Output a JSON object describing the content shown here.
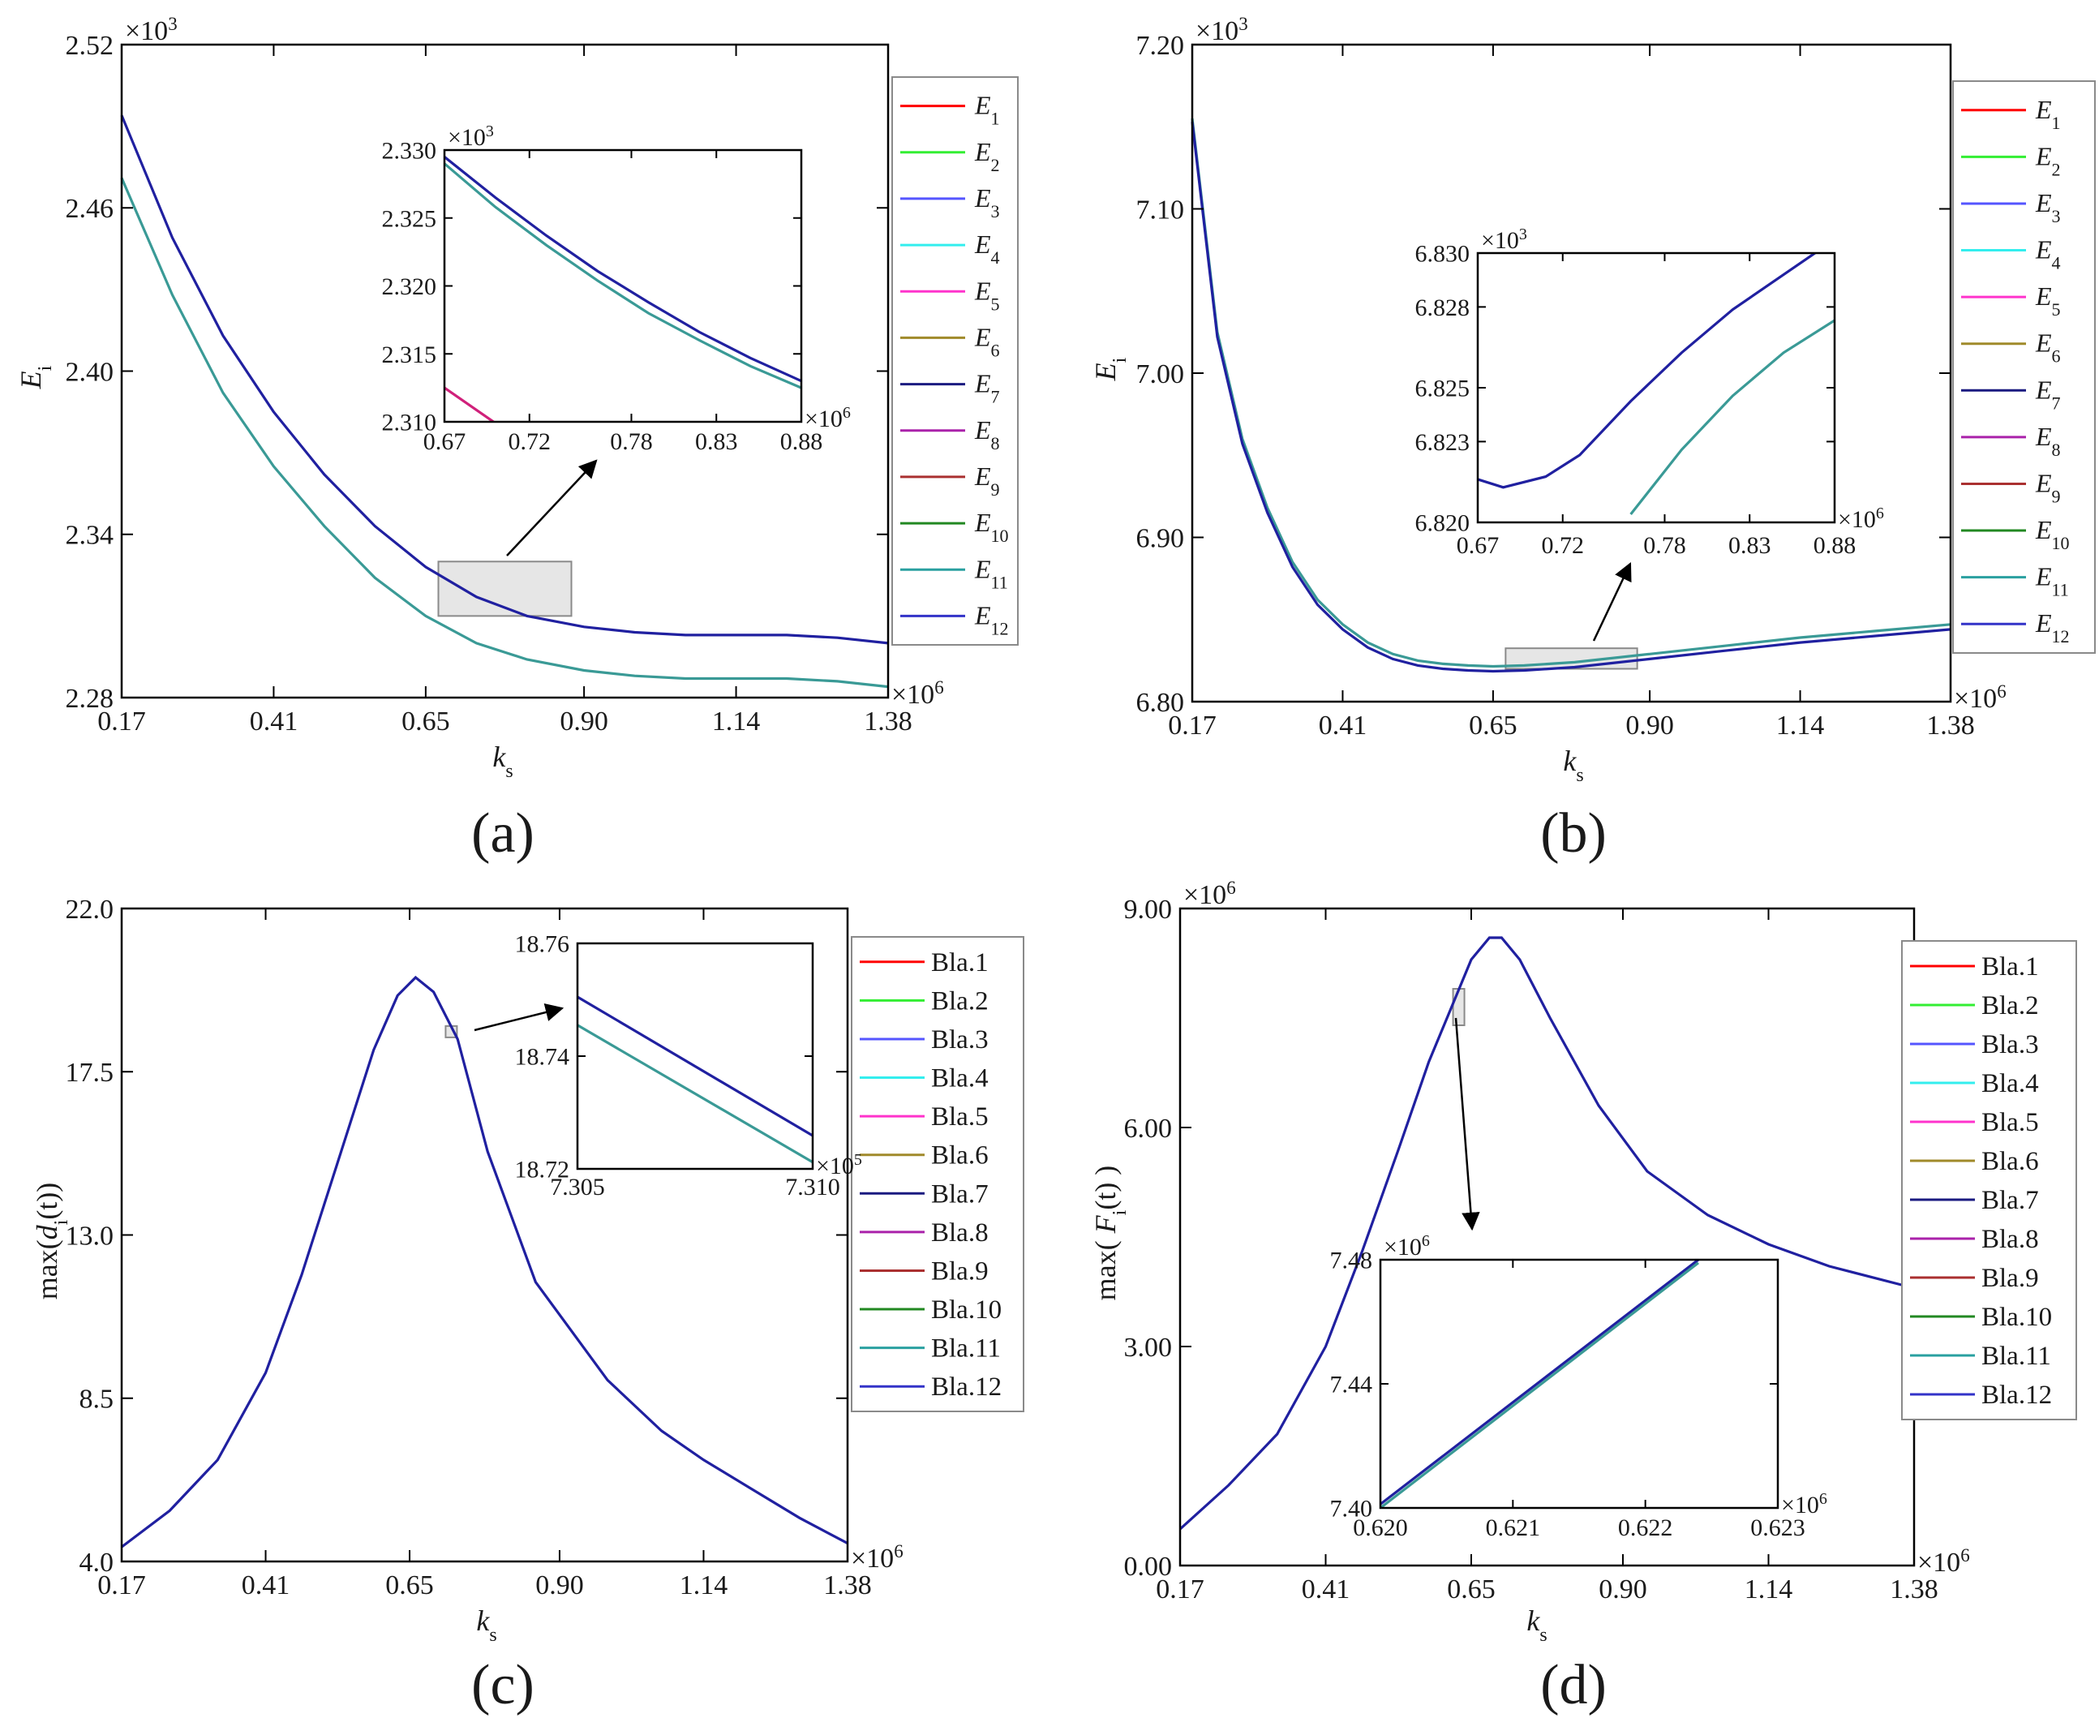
{
  "figure": {
    "panel_letters": [
      "(a)",
      "(b)",
      "(c)",
      "(d)"
    ]
  },
  "colors": {
    "axis": "#000000",
    "highlight_fill": "#e6e6e6",
    "highlight_stroke": "#8a8a8a",
    "curve_upper": "#2020a0",
    "curve_lower": "#3a9a96",
    "series": [
      "#ff0000",
      "#33ee33",
      "#5555ff",
      "#33eeee",
      "#ff33cc",
      "#a08a2a",
      "#1a1a80",
      "#aa22aa",
      "#aa3030",
      "#228822",
      "#2aa0a0",
      "#3333c8"
    ]
  },
  "legends": {
    "energy": [
      {
        "base": "E",
        "sub": "1"
      },
      {
        "base": "E",
        "sub": "2"
      },
      {
        "base": "E",
        "sub": "3"
      },
      {
        "base": "E",
        "sub": "4"
      },
      {
        "base": "E",
        "sub": "5"
      },
      {
        "base": "E",
        "sub": "6"
      },
      {
        "base": "E",
        "sub": "7"
      },
      {
        "base": "E",
        "sub": "8"
      },
      {
        "base": "E",
        "sub": "9"
      },
      {
        "base": "E",
        "sub": "10"
      },
      {
        "base": "E",
        "sub": "11"
      },
      {
        "base": "E",
        "sub": "12"
      }
    ],
    "blades": [
      "Bla.1",
      "Bla.2",
      "Bla.3",
      "Bla.4",
      "Bla.5",
      "Bla.6",
      "Bla.7",
      "Bla.8",
      "Bla.9",
      "Bla.10",
      "Bla.11",
      "Bla.12"
    ]
  },
  "chart_data": [
    {
      "id": "a",
      "type": "line",
      "panel_label": "(a)",
      "ylabel": {
        "base": "E",
        "sub": "i"
      },
      "xlabel": {
        "base": "k",
        "sub": "s"
      },
      "y_multiplier": "×10",
      "y_multiplier_exp": "3",
      "x_multiplier": "×10",
      "x_multiplier_exp": "6",
      "xlim": [
        0.17,
        1.38
      ],
      "ylim": [
        2.28,
        2.52
      ],
      "xticks": [
        "0.17",
        "0.41",
        "0.65",
        "0.90",
        "1.14",
        "1.38"
      ],
      "yticks": [
        "2.28",
        "2.34",
        "2.40",
        "2.46",
        "2.52"
      ],
      "legend": "energy",
      "x": [
        0.17,
        0.25,
        0.33,
        0.41,
        0.49,
        0.57,
        0.65,
        0.73,
        0.81,
        0.9,
        0.98,
        1.06,
        1.14,
        1.22,
        1.3,
        1.38
      ],
      "series": [
        {
          "name": "E1",
          "values": [
            2.471,
            2.428,
            2.392,
            2.365,
            2.343,
            2.324,
            2.31,
            2.3,
            2.294,
            2.29,
            2.288,
            2.287,
            2.287,
            2.287,
            2.286,
            2.284
          ]
        },
        {
          "name": "E2",
          "values": [
            2.494,
            2.449,
            2.413,
            2.385,
            2.362,
            2.343,
            2.328,
            2.317,
            2.31,
            2.306,
            2.304,
            2.303,
            2.303,
            2.303,
            2.302,
            2.3
          ]
        }
      ],
      "highlight": {
        "x": [
          0.67,
          0.88
        ],
        "y": [
          2.31,
          2.33
        ]
      },
      "inset": {
        "xlim": [
          0.67,
          0.88
        ],
        "ylim": [
          2.31,
          2.33
        ],
        "xticks": [
          "0.67",
          "0.72",
          "0.78",
          "0.83",
          "0.88"
        ],
        "yticks": [
          "2.310",
          "2.315",
          "2.320",
          "2.325",
          "2.330"
        ],
        "y_multiplier": "×10",
        "y_multiplier_exp": "3",
        "x_multiplier": "×10",
        "x_multiplier_exp": "6",
        "x": [
          0.67,
          0.7,
          0.73,
          0.76,
          0.79,
          0.82,
          0.85,
          0.88
        ],
        "series": [
          {
            "name": "E upper",
            "values": [
              2.3295,
              2.3265,
              2.3237,
              2.3211,
              2.3188,
              2.3166,
              2.3147,
              2.313
            ]
          },
          {
            "name": "E lower",
            "values": [
              2.329,
              2.3258,
              2.323,
              2.3204,
              2.318,
              2.316,
              2.3141,
              2.3125
            ]
          },
          {
            "name": "E corner",
            "values": [
              2.3125,
              2.3099,
              null,
              null,
              null,
              null,
              null,
              null
            ]
          }
        ]
      }
    },
    {
      "id": "b",
      "type": "line",
      "panel_label": "(b)",
      "ylabel": {
        "base": "E",
        "sub": "i"
      },
      "xlabel": {
        "base": "k",
        "sub": "s"
      },
      "y_multiplier": "×10",
      "y_multiplier_exp": "3",
      "x_multiplier": "×10",
      "x_multiplier_exp": "6",
      "xlim": [
        0.17,
        1.38
      ],
      "ylim": [
        6.8,
        7.2
      ],
      "xticks": [
        "0.17",
        "0.41",
        "0.65",
        "0.90",
        "1.14",
        "1.38"
      ],
      "yticks": [
        "6.80",
        "6.90",
        "7.00",
        "7.10",
        "7.20"
      ],
      "legend": "energy",
      "x": [
        0.17,
        0.21,
        0.25,
        0.29,
        0.33,
        0.37,
        0.41,
        0.45,
        0.49,
        0.53,
        0.57,
        0.61,
        0.65,
        0.7,
        0.78,
        0.9,
        1.02,
        1.14,
        1.26,
        1.38
      ],
      "series": [
        {
          "name": "E upper",
          "values": [
            7.155,
            7.025,
            6.96,
            6.918,
            6.885,
            6.862,
            6.847,
            6.836,
            6.829,
            6.825,
            6.823,
            6.822,
            6.8215,
            6.822,
            6.824,
            6.829,
            6.834,
            6.839,
            6.843,
            6.847
          ]
        },
        {
          "name": "E lower",
          "values": [
            7.153,
            7.022,
            6.957,
            6.915,
            6.882,
            6.859,
            6.844,
            6.833,
            6.826,
            6.822,
            6.82,
            6.819,
            6.8185,
            6.819,
            6.821,
            6.826,
            6.831,
            6.836,
            6.84,
            6.844
          ]
        }
      ],
      "highlight": {
        "x": [
          0.67,
          0.88
        ],
        "y": [
          6.82,
          6.8325
        ]
      },
      "inset": {
        "xlim": [
          0.67,
          0.88
        ],
        "ylim": [
          6.82,
          6.83
        ],
        "xticks": [
          "0.67",
          "0.72",
          "0.78",
          "0.83",
          "0.88"
        ],
        "yticks": [
          "6.820",
          "6.823",
          "6.825",
          "6.828",
          "6.830"
        ],
        "y_multiplier": "×10",
        "y_multiplier_exp": "3",
        "x_multiplier": "×10",
        "x_multiplier_exp": "6",
        "x": [
          0.67,
          0.685,
          0.71,
          0.73,
          0.76,
          0.79,
          0.82,
          0.85,
          0.88
        ],
        "series": [
          {
            "name": "E upper",
            "values": [
              6.8216,
              6.8213,
              6.8217,
              6.8225,
              6.8245,
              6.8263,
              6.8279,
              6.8292,
              6.8305
            ]
          },
          {
            "name": "E lower",
            "values": [
              null,
              null,
              null,
              null,
              6.8203,
              6.8227,
              6.8247,
              6.8263,
              6.8275
            ]
          }
        ]
      }
    },
    {
      "id": "c",
      "type": "line",
      "panel_label": "(c)",
      "ylabel": {
        "prefix": "max(",
        "base": "d",
        "sub": "i",
        "suffix": "(t))"
      },
      "xlabel": {
        "base": "k",
        "sub": "s"
      },
      "x_multiplier": "×10",
      "x_multiplier_exp": "6",
      "xlim": [
        0.17,
        1.38
      ],
      "ylim": [
        4.0,
        22.0
      ],
      "xticks": [
        "0.17",
        "0.41",
        "0.65",
        "0.90",
        "1.14",
        "1.38"
      ],
      "yticks": [
        "4.0",
        "8.5",
        "13.0",
        "17.5",
        "22.0"
      ],
      "legend": "blades",
      "x": [
        0.17,
        0.25,
        0.33,
        0.41,
        0.47,
        0.53,
        0.59,
        0.63,
        0.66,
        0.69,
        0.73,
        0.78,
        0.86,
        0.98,
        1.07,
        1.14,
        1.22,
        1.3,
        1.38
      ],
      "series": [
        {
          "name": "max d",
          "values": [
            4.4,
            5.4,
            6.8,
            9.2,
            11.9,
            15.0,
            18.1,
            19.6,
            20.1,
            19.7,
            18.4,
            15.3,
            11.7,
            9.0,
            7.6,
            6.8,
            6.0,
            5.2,
            4.5
          ]
        }
      ],
      "highlight": {
        "x": [
          0.71,
          0.715
        ],
        "y": [
          18.72,
          18.76
        ]
      },
      "inset": {
        "xlim": [
          7.305,
          7.31
        ],
        "ylim": [
          18.72,
          18.76
        ],
        "xticks": [
          "7.305",
          "7.310"
        ],
        "yticks": [
          "18.72",
          "18.74",
          "18.76"
        ],
        "x_multiplier": "×10",
        "x_multiplier_exp": "5",
        "x": [
          7.305,
          7.31
        ],
        "series": [
          {
            "name": "upper",
            "values": [
              18.7505,
              18.7259
            ]
          },
          {
            "name": "lower",
            "values": [
              18.7455,
              18.7212
            ]
          }
        ]
      }
    },
    {
      "id": "d",
      "type": "line",
      "panel_label": "(d)",
      "ylabel": {
        "prefix": "max( ",
        "base": "F",
        "sub": "i",
        "suffix": "(t) )"
      },
      "xlabel": {
        "base": "k",
        "sub": "s"
      },
      "y_multiplier": "×10",
      "y_multiplier_exp": "6",
      "x_multiplier": "×10",
      "x_multiplier_exp": "6",
      "xlim": [
        0.17,
        1.38
      ],
      "ylim": [
        0.0,
        9.0
      ],
      "xticks": [
        "0.17",
        "0.41",
        "0.65",
        "0.90",
        "1.14",
        "1.38"
      ],
      "yticks": [
        "0.00",
        "3.00",
        "6.00",
        "9.00"
      ],
      "legend": "blades",
      "x": [
        0.17,
        0.25,
        0.33,
        0.41,
        0.47,
        0.53,
        0.58,
        0.62,
        0.65,
        0.68,
        0.7,
        0.73,
        0.78,
        0.86,
        0.94,
        1.04,
        1.14,
        1.24,
        1.38
      ],
      "series": [
        {
          "name": "max F",
          "values": [
            0.5,
            1.1,
            1.8,
            3.0,
            4.3,
            5.7,
            6.9,
            7.7,
            8.3,
            8.6,
            8.6,
            8.3,
            7.5,
            6.3,
            5.4,
            4.8,
            4.4,
            4.1,
            3.8
          ]
        }
      ],
      "highlight": {
        "x": [
          0.62,
          0.627
        ],
        "y": [
          7.4,
          7.9
        ]
      },
      "inset": {
        "xlim": [
          0.62,
          0.623
        ],
        "ylim": [
          7.4,
          7.48
        ],
        "xticks": [
          "0.620",
          "0.621",
          "0.622",
          "0.623"
        ],
        "yticks": [
          "7.40",
          "7.44",
          "7.48"
        ],
        "y_multiplier": "×10",
        "y_multiplier_exp": "6",
        "x_multiplier": "×10",
        "x_multiplier_exp": "6",
        "x": [
          0.62,
          0.6224
        ],
        "series": [
          {
            "name": "upper",
            "values": [
              7.4012,
              7.48
            ]
          },
          {
            "name": "lower",
            "values": [
              7.4,
              7.479
            ]
          }
        ]
      }
    }
  ]
}
